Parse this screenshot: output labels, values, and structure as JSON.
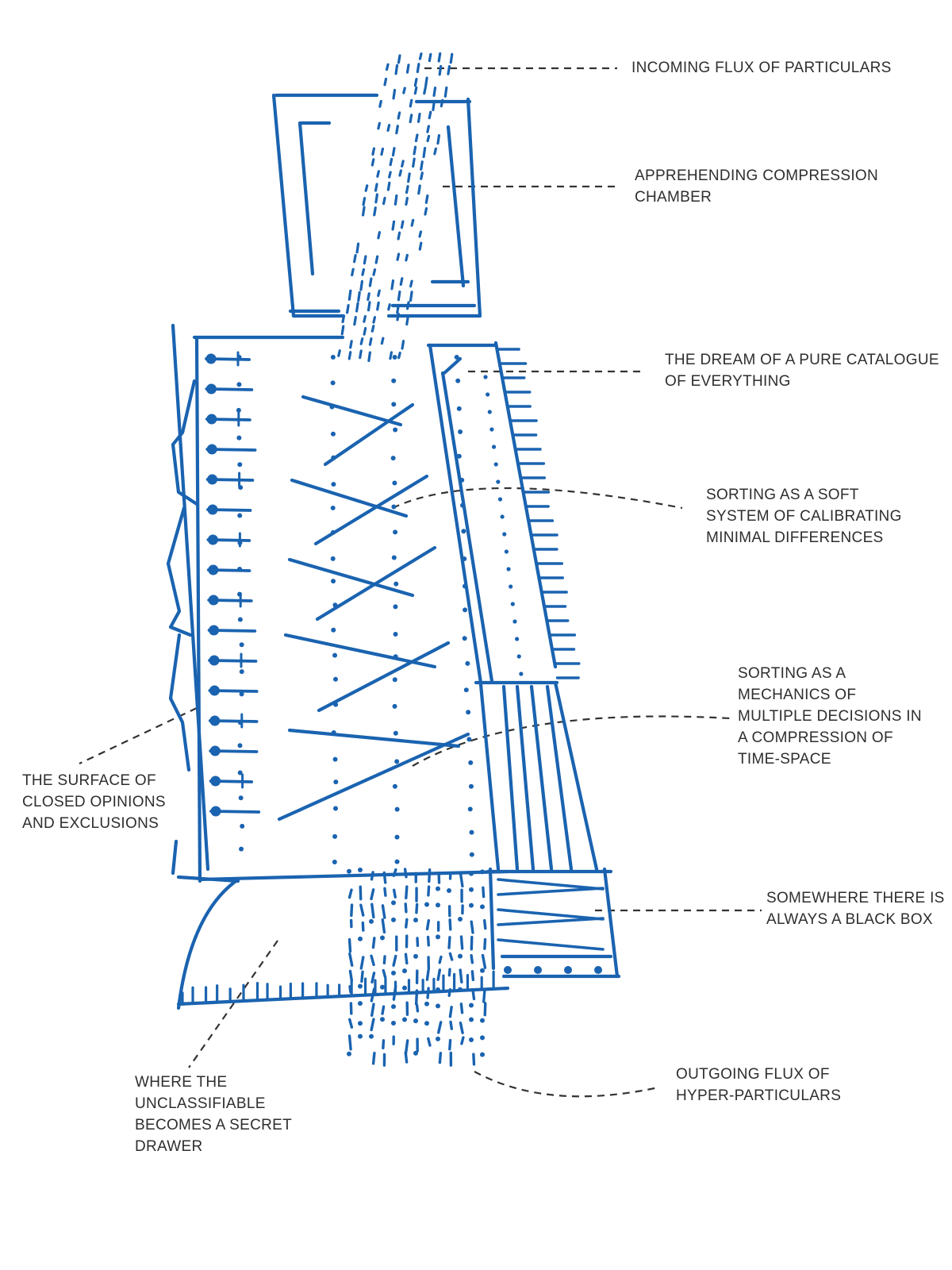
{
  "colors": {
    "ink": "#1a63b0",
    "leader": "#333333",
    "text": "#2e2e2e",
    "background": "#ffffff"
  },
  "labels": {
    "incoming_flux": [
      "INCOMING FLUX OF PARTICULARS"
    ],
    "compression_chamber": [
      "APPREHENDING COMPRESSION",
      "CHAMBER"
    ],
    "pure_catalogue": [
      "THE DREAM OF A PURE CATALOGUE",
      "OF EVERYTHING"
    ],
    "soft_system": [
      "SORTING AS A SOFT",
      "SYSTEM OF CALIBRATING",
      "MINIMAL DIFFERENCES"
    ],
    "mechanics": [
      "SORTING AS A",
      "MECHANICS OF",
      "MULTIPLE DECISIONS IN",
      "A COMPRESSION OF",
      "TIME-SPACE"
    ],
    "closed_opinions": [
      "THE SURFACE OF",
      "CLOSED OPINIONS",
      "AND EXCLUSIONS"
    ],
    "black_box": [
      "SOMEWHERE THERE IS",
      "ALWAYS A BLACK BOX"
    ],
    "secret_drawer": [
      "WHERE THE",
      "UNCLASSIFIABLE",
      "BECOMES A SECRET",
      "DRAWER"
    ],
    "outgoing_flux": [
      "OUTGOING FLUX OF",
      "HYPER-PARTICULARS"
    ]
  }
}
